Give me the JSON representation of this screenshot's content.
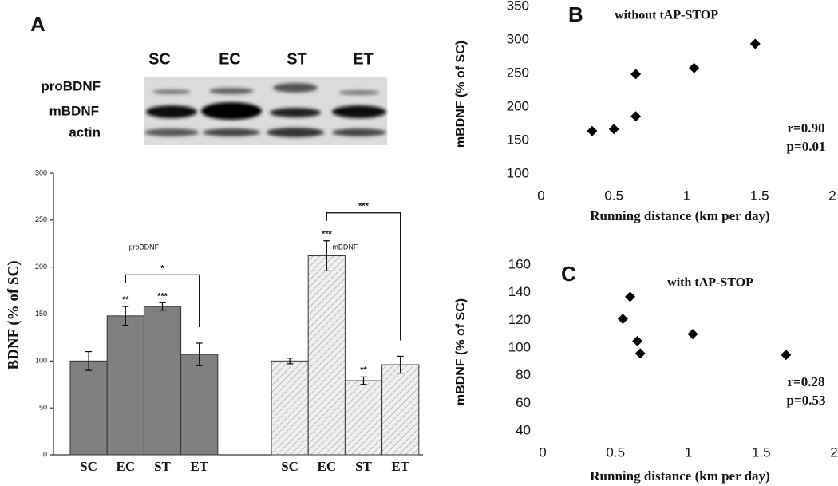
{
  "panels": [
    "A",
    "B",
    "C"
  ],
  "blot": {
    "lanes": [
      "SC",
      "EC",
      "ST",
      "ET"
    ],
    "rows": [
      "proBDNF",
      "mBDNF",
      "actin"
    ]
  },
  "chart_data": [
    {
      "type": "bar",
      "ylabel": "BDNF (% of SC)",
      "categories": [
        "SC",
        "EC",
        "ST",
        "ET"
      ],
      "series": [
        {
          "name": "proBDNF",
          "color": "#808080",
          "values": [
            100,
            148,
            158,
            107
          ],
          "errors": [
            10,
            10,
            4,
            12
          ],
          "significance": [
            null,
            "**",
            "***",
            null
          ],
          "bracket": {
            "from": "EC",
            "to": "ET",
            "label": "*"
          }
        },
        {
          "name": "mBDNF",
          "color": "#ececec",
          "hatch": true,
          "values": [
            100,
            212,
            79,
            96
          ],
          "errors": [
            3,
            16,
            4,
            9
          ],
          "significance": [
            null,
            "***",
            "**",
            null
          ],
          "bracket": {
            "from": "EC",
            "to": "ET",
            "label": "***"
          }
        }
      ],
      "ylim": [
        0,
        300
      ],
      "yticks": [
        0,
        50,
        100,
        150,
        200,
        250,
        300
      ]
    },
    {
      "type": "scatter",
      "title": "without tAP-STOP",
      "xlabel": "Running distance (km per day)",
      "ylabel": "mBDNF (% of SC)",
      "x": [
        0.35,
        0.5,
        0.65,
        0.65,
        1.05,
        1.47
      ],
      "values": [
        164,
        167,
        249,
        186,
        258,
        294
      ],
      "annotations": [
        "r=0.90",
        "p=0.01"
      ],
      "color": "#000000",
      "xlim": [
        0,
        2
      ],
      "xticks": [
        0,
        0.5,
        1,
        1.5,
        2
      ],
      "ylim": [
        100,
        350
      ],
      "yticks": [
        100,
        150,
        200,
        250,
        300,
        350
      ]
    },
    {
      "type": "scatter",
      "title": "with tAP-STOP",
      "xlabel": "Running distance (km per day)",
      "ylabel": "mBDNF (% of SC)",
      "x": [
        0.55,
        0.6,
        0.65,
        0.67,
        1.03,
        1.67
      ],
      "values": [
        121,
        137,
        105,
        96,
        110,
        95
      ],
      "annotations": [
        "r=0.28",
        "p=0.53"
      ],
      "color": "#000000",
      "xlim": [
        0,
        2
      ],
      "xticks": [
        0,
        0.5,
        1,
        1.5,
        2
      ],
      "ylim": [
        40,
        160
      ],
      "yticks": [
        40,
        60,
        80,
        100,
        120,
        140,
        160
      ]
    }
  ]
}
